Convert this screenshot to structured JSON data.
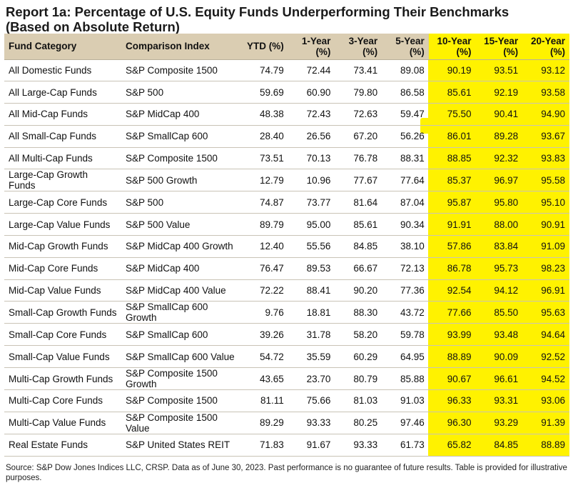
{
  "chart_data": {
    "type": "table",
    "title_lines": [
      "Report 1a: Percentage of U.S. Equity Funds Underperforming Their Benchmarks",
      "(Based on Absolute Return)"
    ],
    "columns": [
      {
        "label": "Fund Category",
        "highlighted": false
      },
      {
        "label": "Comparison Index",
        "highlighted": false
      },
      {
        "label": "YTD (%)",
        "highlighted": false
      },
      {
        "label": "1-Year (%)",
        "highlighted": false
      },
      {
        "label": "3-Year (%)",
        "highlighted": false
      },
      {
        "label": "5-Year (%)",
        "highlighted": false
      },
      {
        "label": "10-Year (%)",
        "highlighted": true
      },
      {
        "label": "15-Year (%)",
        "highlighted": true
      },
      {
        "label": "20-Year (%)",
        "highlighted": true
      }
    ],
    "rows": [
      {
        "category": "All Domestic Funds",
        "index": "S&P Composite 1500",
        "values": [
          "74.79",
          "72.44",
          "73.41",
          "89.08",
          "90.19",
          "93.51",
          "93.12"
        ]
      },
      {
        "category": "All Large-Cap Funds",
        "index": "S&P 500",
        "values": [
          "59.69",
          "60.90",
          "79.80",
          "86.58",
          "85.61",
          "92.19",
          "93.58"
        ]
      },
      {
        "category": "All Mid-Cap Funds",
        "index": "S&P MidCap 400",
        "values": [
          "48.38",
          "72.43",
          "72.63",
          "59.47",
          "75.50",
          "90.41",
          "94.90"
        ]
      },
      {
        "category": "All Small-Cap Funds",
        "index": "S&P SmallCap 600",
        "values": [
          "28.40",
          "26.56",
          "67.20",
          "56.26",
          "86.01",
          "89.28",
          "93.67"
        ]
      },
      {
        "category": "All Multi-Cap Funds",
        "index": "S&P Composite 1500",
        "values": [
          "73.51",
          "70.13",
          "76.78",
          "88.31",
          "88.85",
          "92.32",
          "93.83"
        ]
      },
      {
        "category": "Large-Cap Growth Funds",
        "index": "S&P 500 Growth",
        "values": [
          "12.79",
          "10.96",
          "77.67",
          "77.64",
          "85.37",
          "96.97",
          "95.58"
        ]
      },
      {
        "category": "Large-Cap Core Funds",
        "index": "S&P 500",
        "values": [
          "74.87",
          "73.77",
          "81.64",
          "87.04",
          "95.87",
          "95.80",
          "95.10"
        ]
      },
      {
        "category": "Large-Cap Value Funds",
        "index": "S&P 500 Value",
        "values": [
          "89.79",
          "95.00",
          "85.61",
          "90.34",
          "91.91",
          "88.00",
          "90.91"
        ]
      },
      {
        "category": "Mid-Cap Growth Funds",
        "index": "S&P MidCap 400 Growth",
        "values": [
          "12.40",
          "55.56",
          "84.85",
          "38.10",
          "57.86",
          "83.84",
          "91.09"
        ]
      },
      {
        "category": "Mid-Cap Core Funds",
        "index": "S&P MidCap 400",
        "values": [
          "76.47",
          "89.53",
          "66.67",
          "72.13",
          "86.78",
          "95.73",
          "98.23"
        ]
      },
      {
        "category": "Mid-Cap Value Funds",
        "index": "S&P MidCap 400 Value",
        "values": [
          "72.22",
          "88.41",
          "90.20",
          "77.36",
          "92.54",
          "94.12",
          "96.91"
        ]
      },
      {
        "category": "Small-Cap Growth Funds",
        "index": "S&P SmallCap 600 Growth",
        "values": [
          "9.76",
          "18.81",
          "88.30",
          "43.72",
          "77.66",
          "85.50",
          "95.63"
        ]
      },
      {
        "category": "Small-Cap Core Funds",
        "index": "S&P SmallCap 600",
        "values": [
          "39.26",
          "31.78",
          "58.20",
          "59.78",
          "93.99",
          "93.48",
          "94.64"
        ]
      },
      {
        "category": "Small-Cap Value Funds",
        "index": "S&P SmallCap 600 Value",
        "values": [
          "54.72",
          "35.59",
          "60.29",
          "64.95",
          "88.89",
          "90.09",
          "92.52"
        ]
      },
      {
        "category": "Multi-Cap Growth Funds",
        "index": "S&P Composite 1500 Growth",
        "values": [
          "43.65",
          "23.70",
          "80.79",
          "85.88",
          "90.67",
          "96.61",
          "94.52"
        ]
      },
      {
        "category": "Multi-Cap Core Funds",
        "index": "S&P Composite 1500",
        "values": [
          "81.11",
          "75.66",
          "81.03",
          "91.03",
          "96.33",
          "93.31",
          "93.06"
        ]
      },
      {
        "category": "Multi-Cap Value Funds",
        "index": "S&P Composite 1500 Value",
        "values": [
          "89.29",
          "93.33",
          "80.25",
          "97.46",
          "96.30",
          "93.29",
          "91.39"
        ]
      },
      {
        "category": "Real Estate Funds",
        "index": "S&P United States REIT",
        "values": [
          "71.83",
          "91.67",
          "93.33",
          "61.73",
          "65.82",
          "84.85",
          "88.89"
        ]
      }
    ],
    "footnote": "Source: S&P Dow Jones Indices LLC, CRSP.  Data as of June 30, 2023.  Past performance is no guarantee of future results.  Table is provided for illustrative purposes."
  },
  "colors": {
    "header_bg": "#d6c8aa",
    "highlighter": "#fff200",
    "row_divider": "#c9c3b6"
  }
}
